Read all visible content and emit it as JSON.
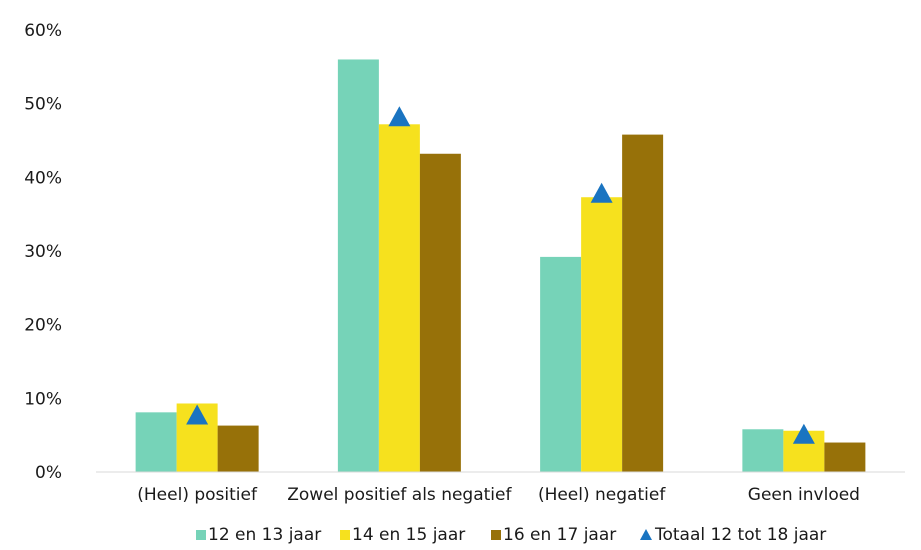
{
  "chart_data": {
    "type": "bar",
    "categories": [
      "(Heel) positief",
      "Zowel positief als negatief",
      "(Heel) negatief",
      "Geen invloed"
    ],
    "series": [
      {
        "name": "12 en 13 jaar",
        "color": "#76d3b8",
        "values": [
          8.1,
          56.0,
          29.2,
          5.8
        ]
      },
      {
        "name": "14 en 15 jaar",
        "color": "#f6e11e",
        "values": [
          9.3,
          47.2,
          37.3,
          5.6
        ]
      },
      {
        "name": "16 en 17 jaar",
        "color": "#977109",
        "values": [
          6.3,
          43.2,
          45.8,
          4.0
        ]
      }
    ],
    "markers": {
      "name": "Totaal 12 tot 18 jaar",
      "color": "#1a74c1",
      "marker": "triangle",
      "values": [
        7.8,
        48.3,
        37.9,
        5.2
      ]
    },
    "y_ticks": [
      "0%",
      "10%",
      "20%",
      "30%",
      "40%",
      "50%",
      "60%"
    ],
    "ylim": [
      0,
      60
    ],
    "grid": false,
    "legend_position": "bottom"
  }
}
